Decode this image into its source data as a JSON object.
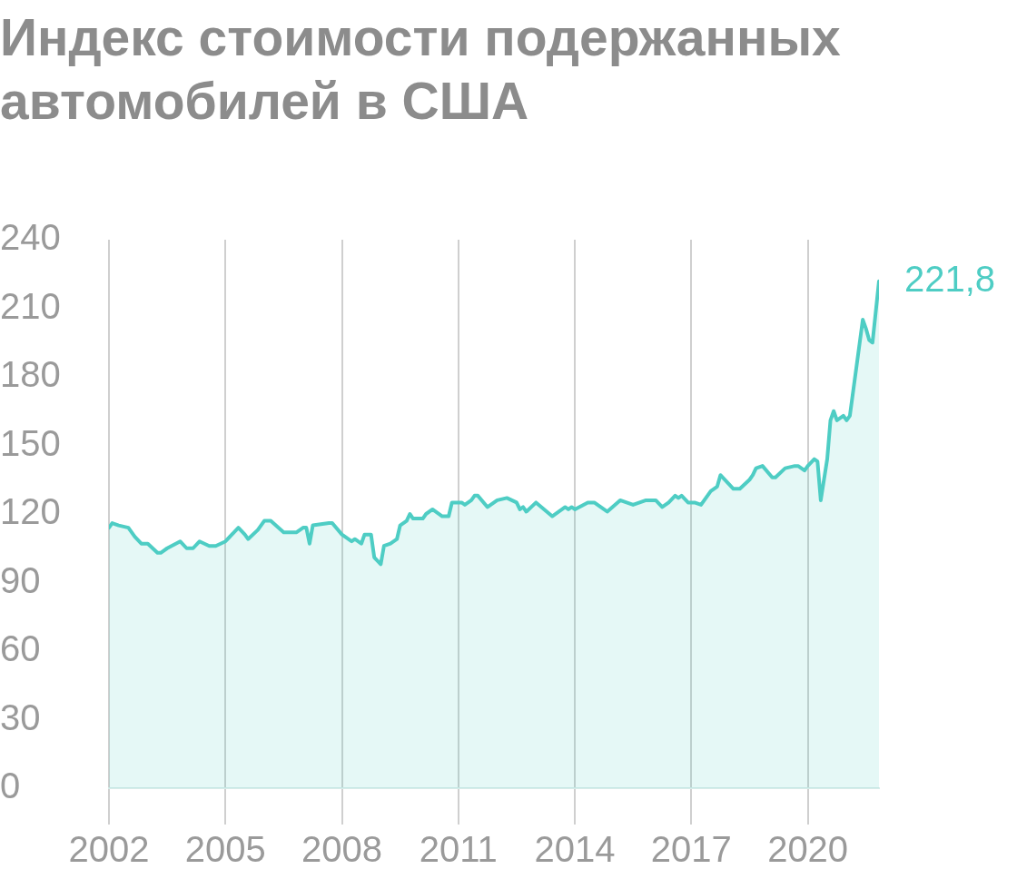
{
  "chart_data": {
    "type": "area",
    "title": "Индекс стоимости подержанных автомобилей в США",
    "x": [
      "2002-01",
      "2002-02",
      "2002-04",
      "2002-07",
      "2002-09",
      "2002-11",
      "2003-01",
      "2003-04",
      "2003-05",
      "2003-07",
      "2003-11",
      "2004-01",
      "2004-03",
      "2004-05",
      "2004-08",
      "2004-10",
      "2005-01",
      "2005-05",
      "2005-07",
      "2005-08",
      "2005-11",
      "2006-01",
      "2006-03",
      "2006-07",
      "2006-11",
      "2007-01",
      "2007-02",
      "2007-03",
      "2007-04",
      "2007-09",
      "2007-10",
      "2008-01",
      "2008-02",
      "2008-04",
      "2008-05",
      "2008-07",
      "2008-08",
      "2008-10",
      "2008-11",
      "2009-01",
      "2009-02",
      "2009-04",
      "2009-06",
      "2009-07",
      "2009-09",
      "2009-10",
      "2009-11",
      "2010-02",
      "2010-03",
      "2010-05",
      "2010-08",
      "2010-10",
      "2010-11",
      "2011-02",
      "2011-03",
      "2011-05",
      "2011-06",
      "2011-07",
      "2011-10",
      "2012-01",
      "2012-04",
      "2012-07",
      "2012-08",
      "2012-09",
      "2012-10",
      "2013-01",
      "2013-06",
      "2013-10",
      "2013-11",
      "2013-12",
      "2014-01",
      "2014-05",
      "2014-07",
      "2014-10",
      "2014-11",
      "2015-03",
      "2015-07",
      "2015-11",
      "2016-02",
      "2016-04",
      "2016-06",
      "2016-08",
      "2016-09",
      "2016-10",
      "2016-12",
      "2017-02",
      "2017-04",
      "2017-07",
      "2017-09",
      "2017-10",
      "2018-02",
      "2018-04",
      "2018-07",
      "2018-08",
      "2018-09",
      "2018-11",
      "2019-02",
      "2019-03",
      "2019-06",
      "2019-09",
      "2019-10",
      "2019-12",
      "2020-01",
      "2020-03",
      "2020-04",
      "2020-05",
      "2020-07",
      "2020-08",
      "2020-09",
      "2020-10",
      "2020-12",
      "2021-01",
      "2021-02",
      "2021-04",
      "2021-06",
      "2021-07",
      "2021-08",
      "2021-09",
      "2021-11"
    ],
    "series": [
      {
        "color": "#4ecdc4",
        "values": [
          114,
          116,
          115,
          114,
          110,
          107,
          107,
          103,
          103,
          105,
          108,
          105,
          105,
          108,
          106,
          106,
          108,
          114,
          111,
          109,
          113,
          117,
          117,
          112,
          112,
          114,
          114,
          107,
          115,
          116,
          116,
          111,
          110,
          108,
          109,
          107,
          111,
          111,
          101,
          98,
          106,
          107,
          109,
          115,
          117,
          120,
          118,
          118,
          120,
          122,
          119,
          119,
          125,
          125,
          124,
          126,
          128,
          128,
          123,
          126,
          127,
          125,
          122,
          123,
          121,
          125,
          119,
          123,
          122,
          123,
          122,
          125,
          125,
          122,
          121,
          126,
          124,
          126,
          126,
          123,
          125,
          128,
          127,
          128,
          125,
          125,
          124,
          130,
          132,
          137,
          131,
          131,
          135,
          137,
          140,
          141,
          136,
          136,
          140,
          141,
          141,
          139,
          141,
          144,
          143,
          126,
          144,
          161,
          165,
          161,
          163,
          161,
          163,
          184,
          205,
          201,
          196,
          195,
          221.8
        ]
      }
    ],
    "xlim": [
      "2002-01",
      "2021-11"
    ],
    "xticks": [
      "2002",
      "2005",
      "2008",
      "2011",
      "2014",
      "2017",
      "2020"
    ],
    "ylim": [
      0,
      240
    ],
    "yticks": [
      0,
      30,
      60,
      90,
      120,
      150,
      180,
      210,
      240
    ],
    "grid": "x",
    "legend": false,
    "marker": "none",
    "line_style": "solid",
    "annotations": [
      {
        "text": "221,8",
        "x": "2021-11",
        "y": 221.8
      }
    ]
  }
}
